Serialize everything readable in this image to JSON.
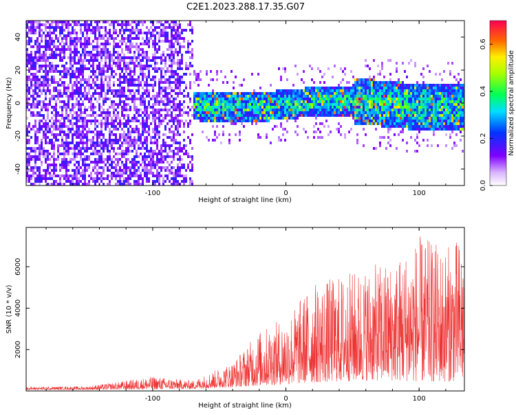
{
  "title": "C2E1.2023.288.17.35.G07",
  "chart_data": [
    {
      "type": "heatmap",
      "xlabel": "Height of straight line (km)",
      "ylabel": "Frequency (Hz)",
      "xlim": [
        -195,
        134
      ],
      "ylim": [
        -50,
        50
      ],
      "x_ticks": [
        -100,
        0,
        100
      ],
      "y_ticks": [
        -40,
        -20,
        0,
        20,
        40
      ],
      "colorbar": {
        "label": "Normalized spectral amplitude",
        "range": [
          0.0,
          0.7
        ],
        "ticks": [
          0.0,
          0.2,
          0.4,
          0.6
        ]
      },
      "regions": [
        {
          "x": [
            -195,
            -70
          ],
          "freq": [
            -50,
            50
          ],
          "amplitude": [
            0.05,
            0.25
          ]
        },
        {
          "x": [
            -70,
            134
          ],
          "freq": [
            -15,
            20
          ],
          "amplitude": [
            0.1,
            0.65
          ]
        }
      ]
    },
    {
      "type": "line",
      "xlabel": "Height of straight line (km)",
      "ylabel": "SNR (10 * v/v)",
      "xlim": [
        -195,
        134
      ],
      "ylim": [
        0,
        7900
      ],
      "x_ticks": [
        -100,
        0,
        100
      ],
      "y_ticks": [
        2000,
        4000,
        6000
      ],
      "color": "#ee3333",
      "envelope": {
        "x": [
          -195,
          -150,
          -130,
          -100,
          -70,
          -40,
          -20,
          0,
          20,
          40,
          60,
          80,
          100,
          120,
          134
        ],
        "low": [
          60,
          60,
          70,
          80,
          100,
          180,
          250,
          320,
          400,
          450,
          500,
          500,
          450,
          450,
          500
        ],
        "high": [
          200,
          220,
          400,
          700,
          500,
          1400,
          2900,
          3600,
          5200,
          5600,
          6000,
          6300,
          7500,
          7000,
          7600
        ]
      }
    }
  ]
}
